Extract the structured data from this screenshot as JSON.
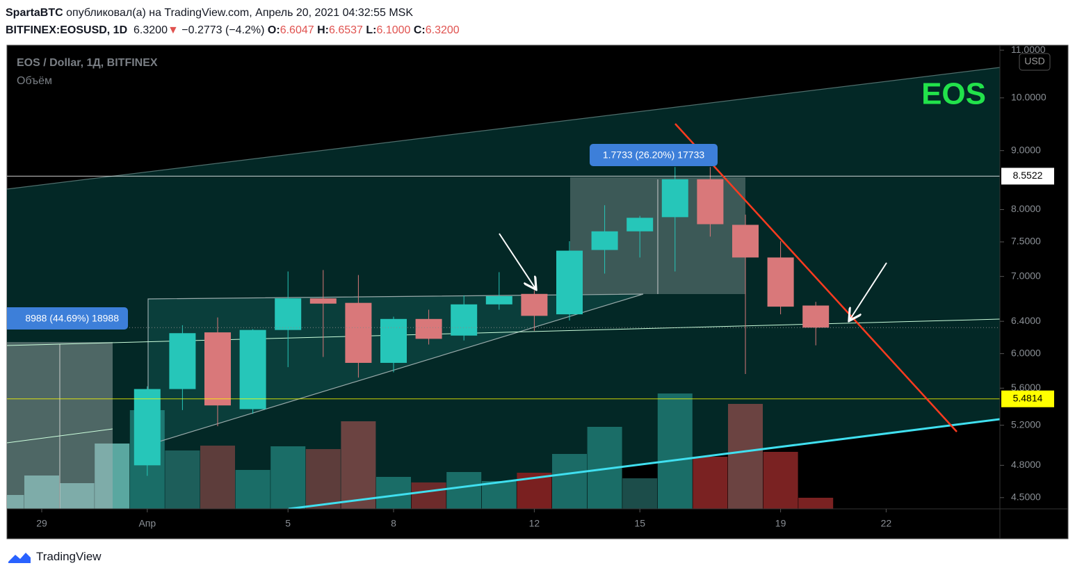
{
  "header": {
    "publisher": "SpartaBTC",
    "published": "опубликовал(а) на TradingView.com, Апрель 20, 2021 04:32:55 MSK",
    "symbol": "BITFINEX:EOSUSD, 1D",
    "last": "6.3200",
    "arrow": "▼",
    "change": "−0.2773 (−4.2%)",
    "ohlc": [
      {
        "key": "O:",
        "value": "6.6047"
      },
      {
        "key": "H:",
        "value": "6.6537"
      },
      {
        "key": "L:",
        "value": "6.1000"
      },
      {
        "key": "C:",
        "value": "6.3200"
      }
    ]
  },
  "chart_data": {
    "type": "candlestick",
    "title": "EOS / Dollar, 1Д, BITFINEX",
    "subtitle": "Объём",
    "watermark": "EOS",
    "currency": "USD",
    "categories": [
      null,
      "29",
      null,
      null,
      "Апр",
      null,
      null,
      null,
      "5",
      null,
      null,
      "8",
      null,
      null,
      null,
      "12",
      null,
      null,
      "15",
      null,
      null,
      null,
      "19",
      null,
      null,
      "22",
      null,
      null
    ],
    "open": [
      null,
      null,
      null,
      null,
      4.8,
      5.59,
      6.26,
      5.37,
      6.29,
      6.7,
      6.64,
      5.89,
      6.43,
      6.22,
      6.62,
      6.76,
      6.49,
      7.38,
      7.66,
      7.88,
      8.5,
      7.76,
      7.27,
      6.6047,
      null,
      null,
      null,
      null
    ],
    "high": [
      null,
      null,
      null,
      null,
      5.62,
      6.35,
      6.45,
      6.3,
      7.07,
      7.09,
      7.02,
      6.46,
      6.55,
      6.74,
      7.06,
      6.81,
      7.51,
      8.07,
      7.9,
      8.71,
      8.71,
      7.92,
      7.51,
      6.6537,
      null,
      null,
      null,
      null
    ],
    "low": [
      null,
      null,
      null,
      null,
      4.7,
      5.36,
      5.19,
      5.32,
      5.84,
      5.96,
      5.72,
      5.78,
      6.11,
      6.16,
      6.55,
      6.28,
      6.41,
      7.04,
      7.27,
      7.07,
      7.58,
      5.76,
      6.49,
      6.1,
      null,
      null,
      null,
      null
    ],
    "close": [
      null,
      null,
      null,
      null,
      5.59,
      6.25,
      5.41,
      6.29,
      6.7,
      6.63,
      5.89,
      6.43,
      6.18,
      6.62,
      6.73,
      6.47,
      7.37,
      7.66,
      7.87,
      8.5,
      7.77,
      7.27,
      6.59,
      6.32,
      null,
      null,
      null,
      null
    ],
    "up_color": "#26c6b9",
    "down_color": "#d9787a",
    "volume": {
      "values": [
        20,
        48,
        37,
        94,
        142,
        84,
        91,
        56,
        90,
        86,
        126,
        46,
        38,
        53,
        40,
        52,
        79,
        118,
        44,
        166,
        75,
        151,
        82,
        16,
        null,
        null,
        null,
        null
      ],
      "colors": [
        "#5aa7a0",
        "#5aa7a0",
        "#5aa7a0",
        "#5aa7a0",
        "#1a6d67",
        "#1d5e5a",
        "#5d3d3b",
        "#1a6d67",
        "#1a6d67",
        "#5d3d3b",
        "#6b4341",
        "#1a6d67",
        "#6d2b2b",
        "#1a6d67",
        "#1a6d67",
        "#7a2020",
        "#1b6b66",
        "#1a6d67",
        "#1c4d4a",
        "#1a6d67",
        "#7a2222",
        "#6b4341",
        "#7a2222",
        "#7a2222",
        null,
        null,
        null,
        null
      ]
    },
    "ylim": [
      4.4,
      11.11
    ],
    "log_scale": true,
    "yticks": [
      {
        "value": 11,
        "label": "11.0000"
      },
      {
        "value": 10,
        "label": "10.0000"
      },
      {
        "value": 9,
        "label": "9.0000"
      },
      {
        "value": 8,
        "label": "8.0000"
      },
      {
        "value": 7.5,
        "label": "7.5000"
      },
      {
        "value": 7,
        "label": "7.0000"
      },
      {
        "value": 6.4,
        "label": "6.4000"
      },
      {
        "value": 6,
        "label": "6.0000"
      },
      {
        "value": 5.6,
        "label": "5.6000"
      },
      {
        "value": 5.2,
        "label": "5.2000"
      },
      {
        "value": 4.8,
        "label": "4.8000"
      },
      {
        "value": 4.5,
        "label": "4.5000"
      }
    ],
    "price_lines": [
      8.5522,
      5.4814
    ],
    "price_line_colors": [
      "#ffffff",
      "#ffff00"
    ],
    "annotations": [
      "1.7733 (26.20%) 17733",
      "8988 (44.69%) 18988"
    ]
  },
  "footer": {
    "brand": "TradingView"
  }
}
